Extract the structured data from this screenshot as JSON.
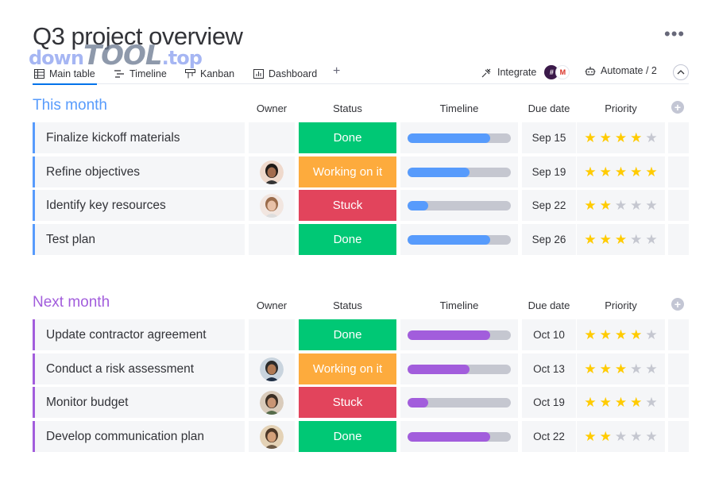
{
  "board": {
    "title": "Q3 project overview",
    "watermark": {
      "part1": "down",
      "part2": "TOOL",
      "part3": ".top"
    },
    "more_icon": "more-dots-icon"
  },
  "tabs": [
    {
      "label": "Main table",
      "icon": "table-icon",
      "active": true
    },
    {
      "label": "Timeline",
      "icon": "timeline-icon",
      "active": false
    },
    {
      "label": "Kanban",
      "icon": "kanban-icon",
      "active": false
    },
    {
      "label": "Dashboard",
      "icon": "dashboard-icon",
      "active": false
    }
  ],
  "toolbar": {
    "add_view": "+",
    "integrate_label": "Integrate",
    "automate_label": "Automate / 2"
  },
  "columns": {
    "owner": "Owner",
    "status": "Status",
    "timeline": "Timeline",
    "due": "Due date",
    "priority": "Priority"
  },
  "colors": {
    "done": "#00c875",
    "working": "#fdab3d",
    "stuck": "#e2445c",
    "this_month": "#579bfc",
    "next_month": "#a25ddc",
    "star_on": "#ffcb00",
    "star_off": "#c5c7d0"
  },
  "groups": [
    {
      "title": "This month",
      "color": "#579bfc",
      "rows": [
        {
          "name": "Finalize kickoff materials",
          "owner": null,
          "status": "Done",
          "status_key": "done",
          "progress": 0.8,
          "due": "Sep 15",
          "rating": 4
        },
        {
          "name": "Refine objectives",
          "owner": "avatar-1",
          "status": "Working on it",
          "status_key": "working",
          "progress": 0.6,
          "due": "Sep 19",
          "rating": 5
        },
        {
          "name": "Identify key resources",
          "owner": "avatar-2",
          "status": "Stuck",
          "status_key": "stuck",
          "progress": 0.2,
          "due": "Sep 22",
          "rating": 2
        },
        {
          "name": "Test plan",
          "owner": null,
          "status": "Done",
          "status_key": "done",
          "progress": 0.8,
          "due": "Sep 26",
          "rating": 3
        }
      ]
    },
    {
      "title": "Next month",
      "color": "#a25ddc",
      "rows": [
        {
          "name": "Update contractor agreement",
          "owner": null,
          "status": "Done",
          "status_key": "done",
          "progress": 0.8,
          "due": "Oct 10",
          "rating": 4
        },
        {
          "name": "Conduct a risk assessment",
          "owner": "avatar-3",
          "status": "Working on it",
          "status_key": "working",
          "progress": 0.6,
          "due": "Oct 13",
          "rating": 3
        },
        {
          "name": "Monitor budget",
          "owner": "avatar-4",
          "status": "Stuck",
          "status_key": "stuck",
          "progress": 0.2,
          "due": "Oct 19",
          "rating": 4
        },
        {
          "name": "Develop communication plan",
          "owner": "avatar-5",
          "status": "Done",
          "status_key": "done",
          "progress": 0.8,
          "due": "Oct 22",
          "rating": 2
        }
      ]
    }
  ]
}
